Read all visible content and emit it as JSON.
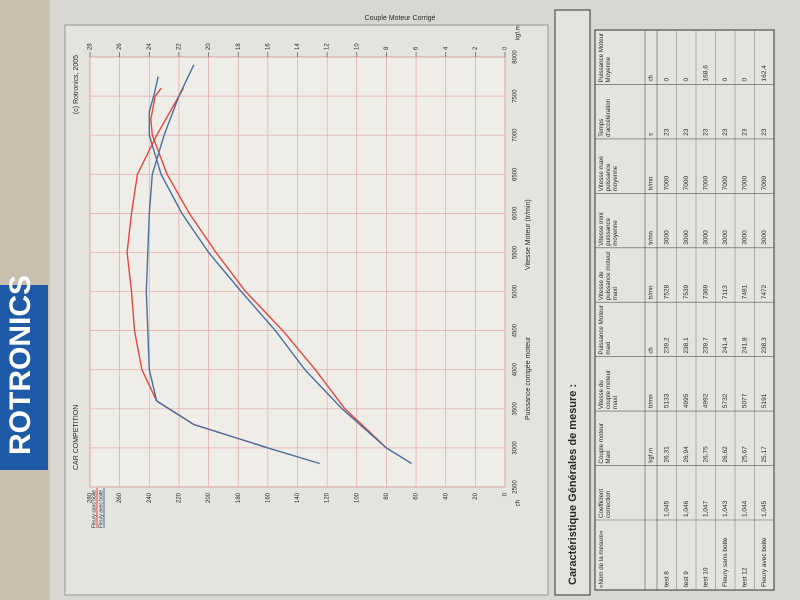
{
  "brand": "ROTRONICS",
  "chart_data": {
    "type": "line",
    "title": "CAR COMPETITION",
    "subtitle": "(c) Rotronics, 2005",
    "x_label": "Vitesse Moteur (tr/min)",
    "y_label": "Puissance corrigée moteur",
    "y_unit": "ch",
    "y2_label": "Couple Moteur Corrigé",
    "y2_unit": "kgf.m",
    "xlim": [
      2500,
      8000
    ],
    "xticks": [
      2500,
      3000,
      3500,
      4000,
      4500,
      5000,
      5500,
      6000,
      6500,
      7000,
      7500,
      8000
    ],
    "ylim": [
      0,
      280
    ],
    "yticks": [
      0,
      20,
      40,
      60,
      80,
      100,
      120,
      140,
      160,
      180,
      200,
      220,
      240,
      260,
      280
    ],
    "y2lim": [
      0,
      28
    ],
    "y2ticks": [
      0,
      2,
      4,
      6,
      8,
      10,
      12,
      14,
      16,
      18,
      20,
      22,
      24,
      26,
      28
    ],
    "grid": true,
    "series": [
      {
        "name": "Fleury sans boite",
        "color": "#e8463f",
        "x": [
          3000,
          3500,
          4000,
          4500,
          5000,
          5500,
          6000,
          6500,
          7000,
          7200,
          7500,
          7600
        ],
        "values": [
          80,
          108,
          128,
          150,
          175,
          195,
          213,
          228,
          238,
          239,
          236,
          232
        ]
      },
      {
        "name": "Fleury avec boite",
        "color": "#4a6f9c",
        "x": [
          2800,
          3000,
          3500,
          4000,
          4500,
          5000,
          5500,
          6000,
          6500,
          7000,
          7300,
          7500,
          7750
        ],
        "values": [
          63,
          80,
          110,
          135,
          155,
          178,
          200,
          218,
          232,
          240,
          240,
          237,
          234
        ]
      },
      {
        "color": "#e8463f",
        "axis": "y2",
        "x": [
          3000,
          3300,
          3600,
          4000,
          4500,
          5000,
          5500,
          6000,
          6500,
          7000,
          7500,
          7600
        ],
        "values": [
          16,
          21,
          23.5,
          24.5,
          25,
          25.2,
          25.5,
          25.2,
          24.8,
          23.5,
          22,
          21.7
        ]
      },
      {
        "color": "#4a6f9c",
        "axis": "y2",
        "x": [
          2800,
          3000,
          3300,
          3600,
          4000,
          5000,
          6000,
          6500,
          7000,
          7500,
          7900
        ],
        "values": [
          12.5,
          16,
          21,
          23.5,
          24,
          24.2,
          24,
          23.8,
          23,
          22,
          21
        ]
      }
    ]
  },
  "table": {
    "title": "Caractéristique Générales de mesure :",
    "headers": [
      "«Nom de la mesure»",
      "Coefficient correction",
      "Couple moteur Maxi",
      "Vitesse du couple moteur maxi",
      "Puissance Moteur maxi",
      "Vitesse de puissance moteur maxi",
      "Vitesse mini puissance moyenne",
      "Vitesse maxi puissance moyenne",
      "Temps d'accélération",
      "Puissance Moteur Moyenne"
    ],
    "units": [
      "kgf.m",
      "tr/mn",
      "ch",
      "tr/mn",
      "tr/mn",
      "tr/mn",
      "s",
      "ch"
    ],
    "rows": [
      [
        "test 8",
        "1,045",
        "26,31",
        "5133",
        "239,2",
        "7528",
        "3000",
        "7000",
        "23",
        "0"
      ],
      [
        "test 9",
        "1,046",
        "26,94",
        "4995",
        "238,1",
        "7539",
        "3000",
        "7000",
        "23",
        "0"
      ],
      [
        "test 10",
        "1,047",
        "26,75",
        "4992",
        "239,7",
        "7369",
        "3000",
        "7000",
        "23",
        "168,6"
      ],
      [
        "Fleury sans boite",
        "1,043",
        "26,62",
        "5732",
        "241,4",
        "7113",
        "3000",
        "7000",
        "23",
        "0"
      ],
      [
        "test 12",
        "1,044",
        "25,67",
        "5077",
        "241,8",
        "7481",
        "3000",
        "7000",
        "23",
        "0"
      ],
      [
        "Fleury avec boite",
        "1,045",
        "25,17",
        "5191",
        "238,3",
        "7472",
        "3000",
        "7000",
        "23",
        "162,4"
      ]
    ]
  }
}
